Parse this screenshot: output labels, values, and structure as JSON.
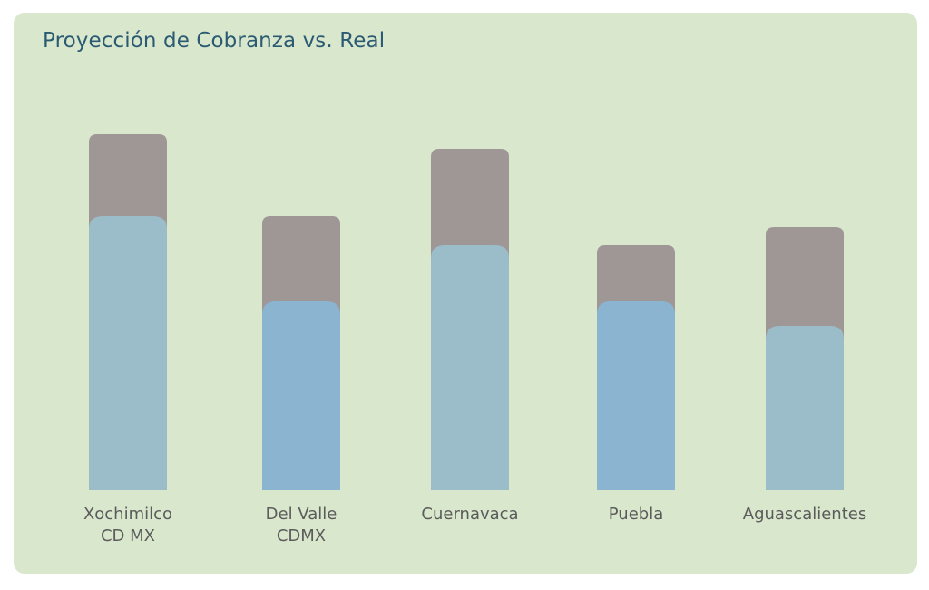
{
  "title": "Proyección de Cobranza vs. Real",
  "colors": {
    "card_background": "#d9e7cd",
    "title": "#2b5a73",
    "projection_bar": "#9e9796",
    "real_bar_a": "#9bbcc9",
    "real_bar_b": "#8bb4d0",
    "label": "#5b5b5b"
  },
  "chart_data": {
    "type": "bar",
    "title": "Proyección de Cobranza vs. Real",
    "categories": [
      [
        "Xochimilco",
        "CD MX"
      ],
      [
        "Del Valle",
        "CDMX"
      ],
      [
        "Cuernavaca"
      ],
      [
        "Puebla"
      ],
      [
        "Aguascalientes"
      ]
    ],
    "series": [
      {
        "values": [
          392,
          302,
          376,
          270,
          290
        ]
      },
      {
        "values": [
          302,
          208,
          270,
          208,
          181
        ]
      }
    ],
    "ylim": [
      0,
      400
    ],
    "grid": false,
    "legend": "none",
    "overlapping": true
  }
}
